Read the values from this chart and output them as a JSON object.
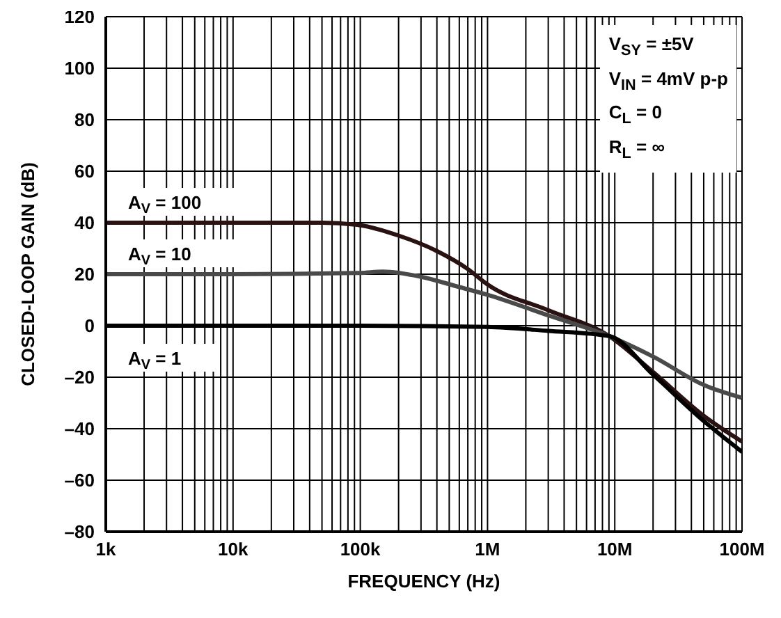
{
  "chart_data": {
    "type": "line",
    "xlabel": "FREQUENCY (Hz)",
    "ylabel": "CLOSED-LOOP GAIN (dB)",
    "log": "x",
    "grid": true,
    "legend": false,
    "marker": "none",
    "line_style": "solid",
    "xlim": [
      1000,
      100000000
    ],
    "xticks": [
      {
        "value": 1000,
        "label": "1k"
      },
      {
        "value": 2000,
        "label": null
      },
      {
        "value": 3000,
        "label": null
      },
      {
        "value": 4000,
        "label": null
      },
      {
        "value": 5000,
        "label": null
      },
      {
        "value": 6000,
        "label": null
      },
      {
        "value": 7000,
        "label": null
      },
      {
        "value": 8000,
        "label": null
      },
      {
        "value": 9000,
        "label": null
      },
      {
        "value": 10000,
        "label": "10k"
      },
      {
        "value": 20000,
        "label": null
      },
      {
        "value": 30000,
        "label": null
      },
      {
        "value": 40000,
        "label": null
      },
      {
        "value": 50000,
        "label": null
      },
      {
        "value": 60000,
        "label": null
      },
      {
        "value": 70000,
        "label": null
      },
      {
        "value": 80000,
        "label": null
      },
      {
        "value": 90000,
        "label": null
      },
      {
        "value": 100000,
        "label": "100k"
      },
      {
        "value": 200000,
        "label": null
      },
      {
        "value": 300000,
        "label": null
      },
      {
        "value": 400000,
        "label": null
      },
      {
        "value": 500000,
        "label": null
      },
      {
        "value": 600000,
        "label": null
      },
      {
        "value": 700000,
        "label": null
      },
      {
        "value": 800000,
        "label": null
      },
      {
        "value": 900000,
        "label": null
      },
      {
        "value": 1000000,
        "label": "1M"
      },
      {
        "value": 2000000,
        "label": null
      },
      {
        "value": 3000000,
        "label": null
      },
      {
        "value": 4000000,
        "label": null
      },
      {
        "value": 5000000,
        "label": null
      },
      {
        "value": 6000000,
        "label": null
      },
      {
        "value": 7000000,
        "label": null
      },
      {
        "value": 8000000,
        "label": null
      },
      {
        "value": 9000000,
        "label": null
      },
      {
        "value": 10000000,
        "label": "10M"
      },
      {
        "value": 20000000,
        "label": null
      },
      {
        "value": 30000000,
        "label": null
      },
      {
        "value": 40000000,
        "label": null
      },
      {
        "value": 50000000,
        "label": null
      },
      {
        "value": 60000000,
        "label": null
      },
      {
        "value": 70000000,
        "label": null
      },
      {
        "value": 80000000,
        "label": null
      },
      {
        "value": 90000000,
        "label": null
      },
      {
        "value": 100000000,
        "label": "100M"
      }
    ],
    "ylim": [
      -80,
      120
    ],
    "yticks": [
      120,
      100,
      80,
      60,
      40,
      20,
      0,
      {
        "value": -20,
        "label": "–20"
      },
      {
        "value": -40,
        "label": "–40"
      },
      {
        "value": -60,
        "label": "–60"
      },
      {
        "value": -80,
        "label": "–80"
      }
    ],
    "series": [
      {
        "name": "A$_{V}$ = 100",
        "color": "#2a1212",
        "x": [
          1000,
          10000,
          50000,
          100000,
          200000,
          400000,
          700000,
          1000000,
          3000000,
          9000000,
          20000000,
          50000000,
          100000000
        ],
        "values": [
          40,
          40,
          40,
          39,
          35,
          29,
          22,
          16,
          6,
          -4,
          -18,
          -35,
          -45
        ]
      },
      {
        "name": "A$_{V}$ = 10",
        "color": "#4a4a4a",
        "x": [
          1000,
          10000,
          100000,
          150000,
          300000,
          600000,
          1000000,
          3000000,
          9000000,
          20000000,
          50000000,
          100000000
        ],
        "values": [
          20,
          20,
          20.5,
          21,
          19,
          15,
          12,
          4,
          -4,
          -12,
          -23,
          -28
        ]
      },
      {
        "name": "A$_{V}$ = 1",
        "color": "#000000",
        "x": [
          1000,
          10000,
          100000,
          1000000,
          3000000,
          9000000,
          20000000,
          50000000,
          100000000
        ],
        "values": [
          0,
          0,
          0,
          -0.5,
          -2,
          -4,
          -19,
          -37,
          -49
        ]
      }
    ],
    "annotations": [
      "V$_{SY}$ = ±5V",
      "V$_{IN}$ = 4mV p-p",
      "C$_{L}$ = 0",
      "R$_{L}$ = ∞"
    ]
  }
}
